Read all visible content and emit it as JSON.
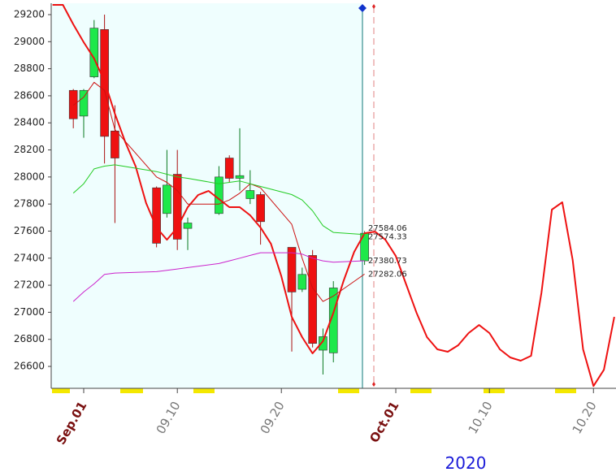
{
  "chart_data": {
    "type": "candlestick",
    "xlim": [
      "2020-08-28T21:00",
      "2020-10-22T04:00"
    ],
    "ylim": [
      26438,
      29284
    ],
    "yticks": [
      26600,
      26800,
      27000,
      27200,
      27400,
      27600,
      27800,
      28000,
      28200,
      28400,
      28600,
      28800,
      29000,
      29200
    ],
    "xticks": [
      {
        "value": "2020-09-01",
        "label": "Sep.01"
      },
      {
        "value": "2020-09-10",
        "label": "09.10"
      },
      {
        "value": "2020-09-20",
        "label": "09.20"
      },
      {
        "value": "2020-10-01",
        "label": "Oct.01"
      },
      {
        "value": "2020-10-10",
        "label": "10.10"
      },
      {
        "value": "2020-10-20",
        "label": "10.20"
      }
    ],
    "year_label": "2020",
    "up_color": "#1ee84a",
    "down_color": "#ee1111",
    "candles": {
      "x": [
        "2020-08-31",
        "2020-09-01",
        "2020-09-02",
        "2020-09-03",
        "2020-09-04",
        "2020-09-08",
        "2020-09-09",
        "2020-09-10",
        "2020-09-11",
        "2020-09-14",
        "2020-09-15",
        "2020-09-16",
        "2020-09-17",
        "2020-09-18",
        "2020-09-21",
        "2020-09-22",
        "2020-09-23",
        "2020-09-24",
        "2020-09-25",
        "2020-09-28"
      ],
      "open": [
        28640,
        28450,
        28740,
        29090,
        28340,
        27920,
        27730,
        28020,
        27620,
        27730,
        28140,
        27990,
        27840,
        27870,
        27480,
        27170,
        27420,
        26720,
        26700,
        27380
      ],
      "high": [
        28650,
        28650,
        29160,
        29200,
        28530,
        27930,
        28200,
        28200,
        27700,
        28080,
        28160,
        28360,
        28050,
        27890,
        27480,
        27330,
        27460,
        26880,
        27230,
        27600
      ],
      "low": [
        28360,
        28290,
        28730,
        28100,
        27660,
        27480,
        27700,
        27460,
        27460,
        27720,
        27960,
        27900,
        27800,
        27500,
        26710,
        27150,
        26740,
        26540,
        26630,
        27350
      ],
      "close": [
        28430,
        28640,
        29100,
        28300,
        28140,
        27510,
        27940,
        27540,
        27660,
        28000,
        27990,
        28010,
        27900,
        27670,
        27150,
        27280,
        26770,
        26820,
        27180,
        27584.06
      ]
    },
    "series": [
      {
        "color": "#ee1111",
        "width": 2,
        "x": [
          "2020-08-29",
          "2020-08-30",
          "2020-08-31",
          "2020-09-01",
          "2020-09-02",
          "2020-09-03",
          "2020-09-04",
          "2020-09-05",
          "2020-09-06",
          "2020-09-07",
          "2020-09-08",
          "2020-09-09",
          "2020-09-10",
          "2020-09-11",
          "2020-09-12",
          "2020-09-13",
          "2020-09-14",
          "2020-09-15",
          "2020-09-16",
          "2020-09-17",
          "2020-09-18",
          "2020-09-19",
          "2020-09-20",
          "2020-09-21",
          "2020-09-22",
          "2020-09-23",
          "2020-09-24",
          "2020-09-25",
          "2020-09-26",
          "2020-09-27",
          "2020-09-28",
          "2020-09-29",
          "2020-09-30",
          "2020-10-01",
          "2020-10-02",
          "2020-10-03",
          "2020-10-04",
          "2020-10-05",
          "2020-10-06",
          "2020-10-07",
          "2020-10-08",
          "2020-10-09",
          "2020-10-10",
          "2020-10-11",
          "2020-10-12",
          "2020-10-13",
          "2020-10-14",
          "2020-10-15",
          "2020-10-16",
          "2020-10-17",
          "2020-10-18",
          "2020-10-19",
          "2020-10-20",
          "2020-10-21",
          "2020-10-22"
        ],
        "values": [
          29272,
          29272,
          29128,
          28996,
          28876,
          28708,
          28467,
          28257,
          28077,
          27807,
          27626,
          27536,
          27626,
          27777,
          27867,
          27897,
          27837,
          27777,
          27777,
          27717,
          27626,
          27506,
          27266,
          26966,
          26816,
          26696,
          26786,
          26996,
          27236,
          27446,
          27584,
          27596,
          27536,
          27416,
          27206,
          26996,
          26816,
          26726,
          26708,
          26756,
          26846,
          26906,
          26846,
          26726,
          26666,
          26642,
          26678,
          27146,
          27759,
          27813,
          27386,
          26726,
          26455,
          26575,
          26966
        ]
      },
      {
        "color": "#cc1111",
        "width": 1,
        "x": [
          "2020-08-31",
          "2020-09-01",
          "2020-09-02",
          "2020-09-03",
          "2020-09-04",
          "2020-09-08",
          "2020-09-09",
          "2020-09-10",
          "2020-09-11",
          "2020-09-14",
          "2020-09-15",
          "2020-09-16",
          "2020-09-17",
          "2020-09-18",
          "2020-09-21",
          "2020-09-22",
          "2020-09-23",
          "2020-09-24",
          "2020-09-25",
          "2020-09-28"
        ],
        "values": [
          28530,
          28590,
          28700,
          28640,
          28350,
          28000,
          27960,
          27900,
          27800,
          27800,
          27830,
          27880,
          27950,
          27920,
          27650,
          27400,
          27180,
          27080,
          27120,
          27282.06
        ]
      },
      {
        "color": "#22cc22",
        "width": 1,
        "x": [
          "2020-08-31",
          "2020-09-01",
          "2020-09-02",
          "2020-09-03",
          "2020-09-04",
          "2020-09-08",
          "2020-09-09",
          "2020-09-10",
          "2020-09-11",
          "2020-09-14",
          "2020-09-15",
          "2020-09-16",
          "2020-09-17",
          "2020-09-18",
          "2020-09-21",
          "2020-09-22",
          "2020-09-23",
          "2020-09-24",
          "2020-09-25",
          "2020-09-28"
        ],
        "values": [
          27880,
          27950,
          28060,
          28080,
          28090,
          28040,
          28020,
          28000,
          27990,
          27950,
          27960,
          27970,
          27950,
          27930,
          27870,
          27830,
          27750,
          27640,
          27590,
          27574.33
        ]
      },
      {
        "color": "#cc22cc",
        "width": 1,
        "x": [
          "2020-08-31",
          "2020-09-01",
          "2020-09-02",
          "2020-09-03",
          "2020-09-04",
          "2020-09-08",
          "2020-09-09",
          "2020-09-10",
          "2020-09-11",
          "2020-09-14",
          "2020-09-15",
          "2020-09-16",
          "2020-09-17",
          "2020-09-18",
          "2020-09-21",
          "2020-09-22",
          "2020-09-23",
          "2020-09-24",
          "2020-09-25",
          "2020-09-28"
        ],
        "values": [
          27080,
          27150,
          27210,
          27280,
          27290,
          27300,
          27310,
          27320,
          27330,
          27360,
          27380,
          27400,
          27420,
          27440,
          27440,
          27430,
          27400,
          27380,
          27370,
          27380.73
        ]
      }
    ],
    "last_values": [
      27584.06,
      27574.33,
      27380.73,
      27282.06
    ]
  }
}
